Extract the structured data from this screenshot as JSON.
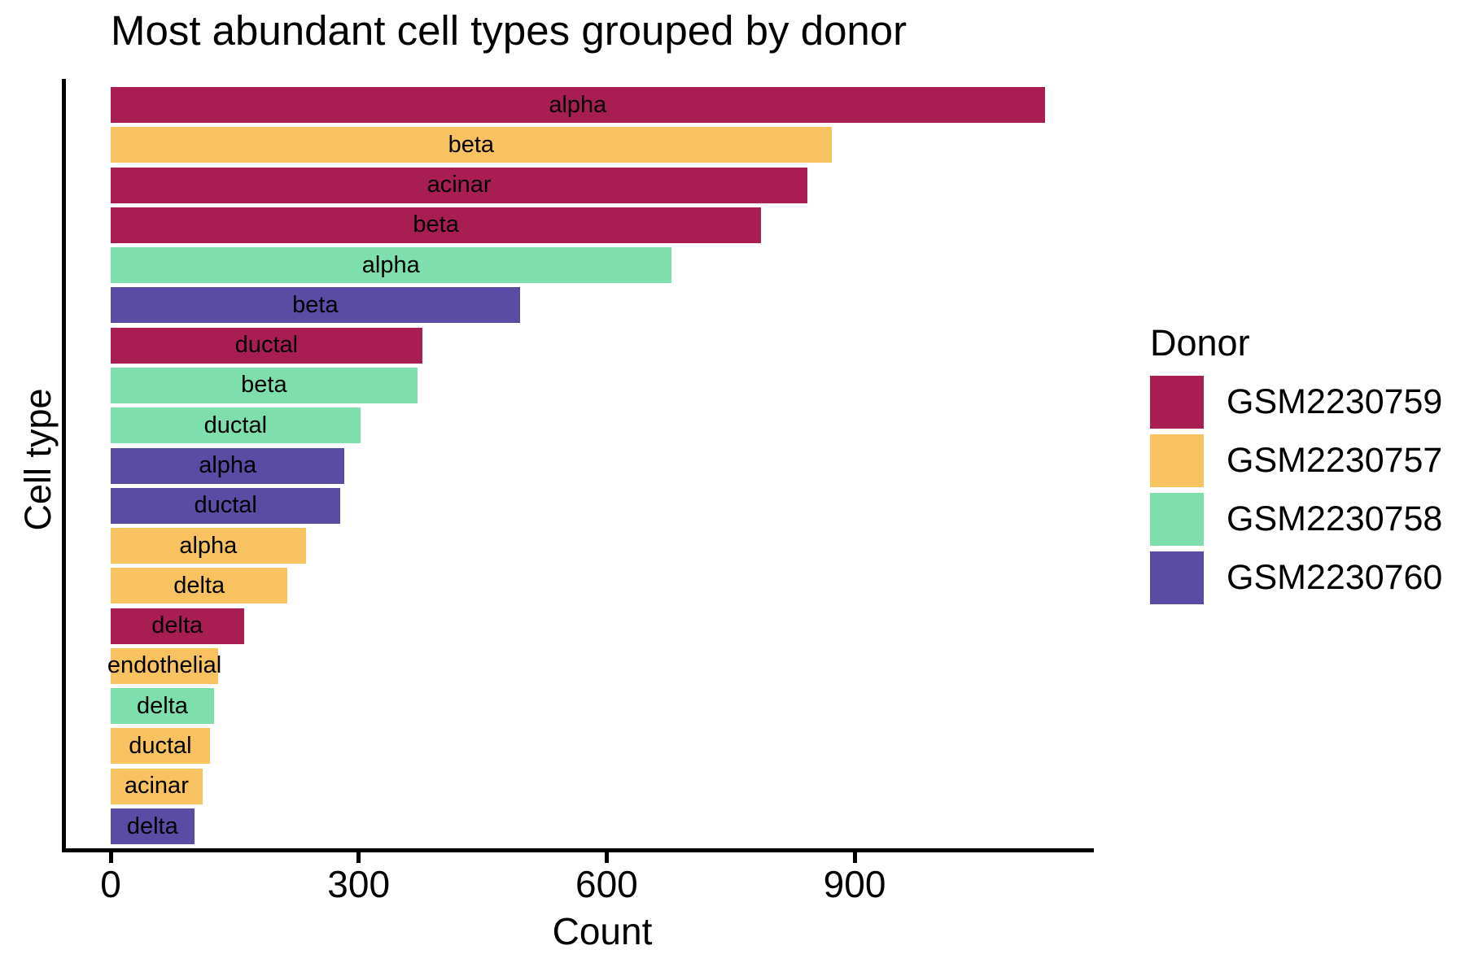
{
  "chart_data": {
    "type": "bar",
    "orientation": "horizontal",
    "title": "Most abundant cell types grouped by donor",
    "xlabel": "Count",
    "ylabel": "Cell type",
    "xlim": [
      0,
      1190
    ],
    "x_ticks": [
      0,
      300,
      600,
      900
    ],
    "grid": false,
    "bar_label_color": "#000000",
    "legend": {
      "title": "Donor",
      "position": "right",
      "entries": [
        {
          "label": "GSM2230759",
          "color": "#A81E53"
        },
        {
          "label": "GSM2230757",
          "color": "#F7C25F"
        },
        {
          "label": "GSM2230758",
          "color": "#7EDFAC"
        },
        {
          "label": "GSM2230760",
          "color": "#5A4BA4"
        }
      ]
    },
    "bars": [
      {
        "cell_type": "alpha",
        "donor": "GSM2230759",
        "count": 1130
      },
      {
        "cell_type": "beta",
        "donor": "GSM2230757",
        "count": 872
      },
      {
        "cell_type": "acinar",
        "donor": "GSM2230759",
        "count": 843
      },
      {
        "cell_type": "beta",
        "donor": "GSM2230759",
        "count": 787
      },
      {
        "cell_type": "alpha",
        "donor": "GSM2230758",
        "count": 678
      },
      {
        "cell_type": "beta",
        "donor": "GSM2230760",
        "count": 495
      },
      {
        "cell_type": "ductal",
        "donor": "GSM2230759",
        "count": 377
      },
      {
        "cell_type": "beta",
        "donor": "GSM2230758",
        "count": 371
      },
      {
        "cell_type": "ductal",
        "donor": "GSM2230758",
        "count": 302
      },
      {
        "cell_type": "alpha",
        "donor": "GSM2230760",
        "count": 283
      },
      {
        "cell_type": "ductal",
        "donor": "GSM2230760",
        "count": 278
      },
      {
        "cell_type": "alpha",
        "donor": "GSM2230757",
        "count": 236
      },
      {
        "cell_type": "delta",
        "donor": "GSM2230757",
        "count": 214
      },
      {
        "cell_type": "delta",
        "donor": "GSM2230759",
        "count": 161
      },
      {
        "cell_type": "endothelial",
        "donor": "GSM2230757",
        "count": 130
      },
      {
        "cell_type": "delta",
        "donor": "GSM2230758",
        "count": 125
      },
      {
        "cell_type": "ductal",
        "donor": "GSM2230757",
        "count": 120
      },
      {
        "cell_type": "acinar",
        "donor": "GSM2230757",
        "count": 111
      },
      {
        "cell_type": "delta",
        "donor": "GSM2230760",
        "count": 101
      }
    ]
  }
}
